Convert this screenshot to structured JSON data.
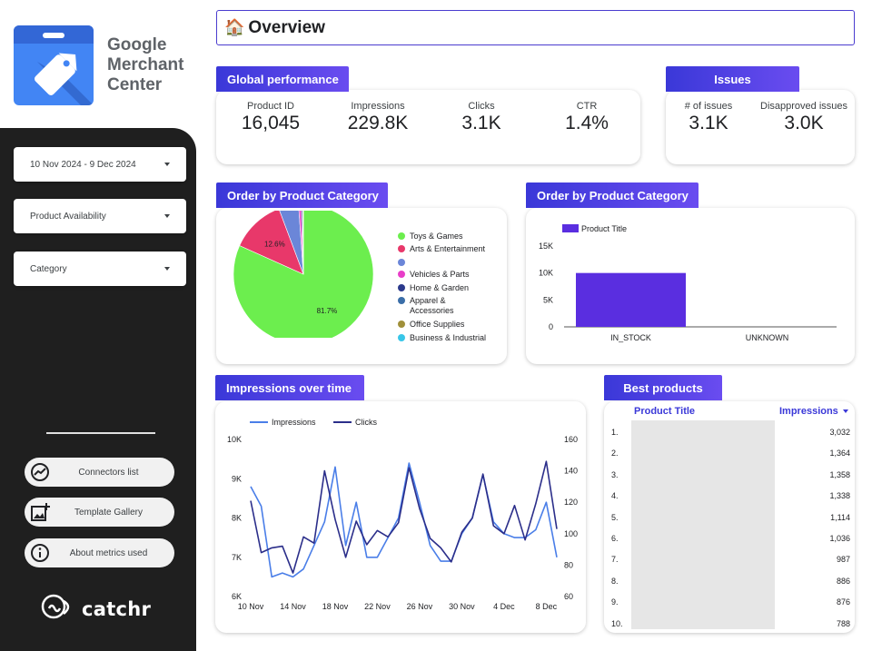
{
  "brand": {
    "lines": [
      "Google",
      "Merchant",
      "Center"
    ],
    "logo_icon": "merchant-tag-icon"
  },
  "filters": [
    {
      "label": "10 Nov 2024 - 9 Dec 2024"
    },
    {
      "label": "Product Availability"
    },
    {
      "label": "Category"
    }
  ],
  "side_buttons": [
    {
      "label": "Connectors list",
      "icon": "chart-circle-icon"
    },
    {
      "label": "Template Gallery",
      "icon": "add-image-icon"
    },
    {
      "label": "About metrics used",
      "icon": "info-icon"
    }
  ],
  "footer_logo": "catchr",
  "title": {
    "icon": "🏠",
    "text": "Overview"
  },
  "global": {
    "tab": "Global performance",
    "kpis": [
      {
        "label": "Product ID",
        "value": "16,045"
      },
      {
        "label": "Impressions",
        "value": "229.8K"
      },
      {
        "label": "Clicks",
        "value": "3.1K"
      },
      {
        "label": "CTR",
        "value": "1.4%"
      }
    ]
  },
  "issues": {
    "tab": "Issues",
    "kpis": [
      {
        "label": "# of issues",
        "value": "3.1K"
      },
      {
        "label": "Disapproved issues",
        "value": "3.0K"
      }
    ]
  },
  "pie_card": {
    "tab": "Order by Product Category"
  },
  "bar_card": {
    "tab": "Order by Product Category"
  },
  "impressions_card": {
    "tab": "Impressions over time"
  },
  "best": {
    "tab": "Best products",
    "col_title": "Product Title",
    "col_metric": "Impressions",
    "sort_icon": "sort-desc-icon",
    "rows": [
      {
        "n": "1.",
        "v": "3,032"
      },
      {
        "n": "2.",
        "v": "1,364"
      },
      {
        "n": "3.",
        "v": "1,358"
      },
      {
        "n": "4.",
        "v": "1,338"
      },
      {
        "n": "5.",
        "v": "1,114"
      },
      {
        "n": "6.",
        "v": "1,036"
      },
      {
        "n": "7.",
        "v": "987"
      },
      {
        "n": "8.",
        "v": "886"
      },
      {
        "n": "9.",
        "v": "876"
      },
      {
        "n": "10.",
        "v": "788"
      }
    ]
  },
  "chart_data": [
    {
      "type": "pie",
      "slices": [
        {
          "name": "Toys & Games",
          "value": 81.7,
          "label": "81.7%",
          "color": "#6cee4e"
        },
        {
          "name": "Arts & Entertainment",
          "value": 12.6,
          "label": "12.6%",
          "color": "#e8386a"
        },
        {
          "name": "",
          "value": 4.6,
          "color": "#6b86d8"
        },
        {
          "name": "Vehicles & Parts",
          "value": 0.6,
          "color": "#e83ec8"
        },
        {
          "name": "Home & Garden",
          "value": 0.3,
          "color": "#2b3a8c"
        },
        {
          "name": "Apparel & Accessories",
          "value": 0.1,
          "color": "#3b6ea8"
        },
        {
          "name": "Office Supplies",
          "value": 0.05,
          "color": "#a0903a"
        },
        {
          "name": "Business & Industrial",
          "value": 0.05,
          "color": "#38c6e8"
        }
      ]
    },
    {
      "type": "bar",
      "categories": [
        "IN_STOCK",
        "UNKNOWN"
      ],
      "series": [
        {
          "name": "Product Title",
          "values": [
            10000,
            0
          ],
          "color": "#5a2ee0"
        }
      ],
      "ylim": [
        0,
        15000
      ],
      "yticks": [
        "0",
        "5K",
        "10K",
        "15K"
      ]
    },
    {
      "type": "line",
      "x": [
        "10 Nov",
        "11 Nov",
        "12 Nov",
        "13 Nov",
        "14 Nov",
        "15 Nov",
        "16 Nov",
        "17 Nov",
        "18 Nov",
        "19 Nov",
        "20 Nov",
        "21 Nov",
        "22 Nov",
        "23 Nov",
        "24 Nov",
        "25 Nov",
        "26 Nov",
        "27 Nov",
        "28 Nov",
        "29 Nov",
        "30 Nov",
        "1 Dec",
        "2 Dec",
        "3 Dec",
        "4 Dec",
        "5 Dec",
        "6 Dec",
        "7 Dec",
        "8 Dec",
        "9 Dec"
      ],
      "xticks": [
        "10 Nov",
        "14 Nov",
        "18 Nov",
        "22 Nov",
        "26 Nov",
        "30 Nov",
        "4 Dec",
        "8 Dec"
      ],
      "series": [
        {
          "name": "Impressions",
          "axis": "left",
          "color": "#4a7ee8",
          "values": [
            8800,
            8300,
            6500,
            6600,
            6500,
            6700,
            7300,
            7900,
            9300,
            7300,
            8400,
            7000,
            7000,
            7500,
            8000,
            9400,
            8400,
            7300,
            6900,
            6900,
            7600,
            8000,
            9100,
            7900,
            7600,
            7500,
            7500,
            7700,
            8400,
            7000
          ]
        },
        {
          "name": "Clicks",
          "axis": "right",
          "color": "#2b2e8a",
          "values": [
            121,
            88,
            91,
            92,
            75,
            98,
            94,
            140,
            109,
            85,
            108,
            93,
            102,
            98,
            107,
            142,
            116,
            97,
            91,
            82,
            101,
            110,
            138,
            105,
            100,
            118,
            96,
            119,
            146,
            103
          ]
        }
      ],
      "left_axis": {
        "ylim": [
          6000,
          10000
        ],
        "ticks": [
          "6K",
          "7K",
          "8K",
          "9K",
          "10K"
        ]
      },
      "right_axis": {
        "ylim": [
          60,
          160
        ],
        "ticks": [
          "60",
          "80",
          "100",
          "120",
          "140",
          "160"
        ]
      }
    }
  ]
}
